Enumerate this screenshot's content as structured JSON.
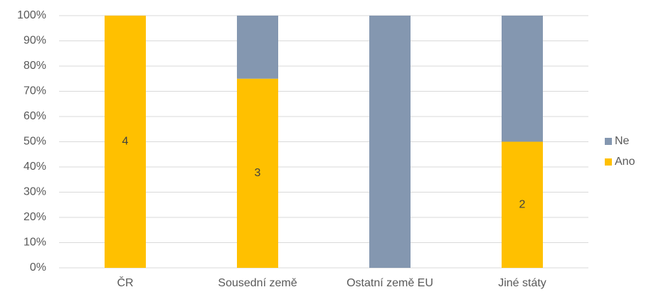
{
  "chart_data": {
    "type": "bar",
    "stacked": true,
    "categories": [
      "ČR",
      "Sousední země",
      "Ostatní země EU",
      "Jiné státy"
    ],
    "series": [
      {
        "name": "Ano",
        "color": "#ffc000",
        "values": [
          100,
          75,
          0,
          50
        ],
        "value_labels": [
          "4",
          "3",
          null,
          "2"
        ]
      },
      {
        "name": "Ne",
        "color": "#8497b0",
        "values": [
          0,
          25,
          100,
          50
        ]
      }
    ],
    "ylim": [
      0,
      100
    ],
    "yticks": [
      {
        "value": 0,
        "label": "0%"
      },
      {
        "value": 10,
        "label": "10%"
      },
      {
        "value": 20,
        "label": "20%"
      },
      {
        "value": 30,
        "label": "30%"
      },
      {
        "value": 40,
        "label": "40%"
      },
      {
        "value": 50,
        "label": "50%"
      },
      {
        "value": 60,
        "label": "60%"
      },
      {
        "value": 70,
        "label": "70%"
      },
      {
        "value": 80,
        "label": "80%"
      },
      {
        "value": 90,
        "label": "90%"
      },
      {
        "value": 100,
        "label": "100%"
      }
    ],
    "grid": true,
    "legend": "right"
  }
}
